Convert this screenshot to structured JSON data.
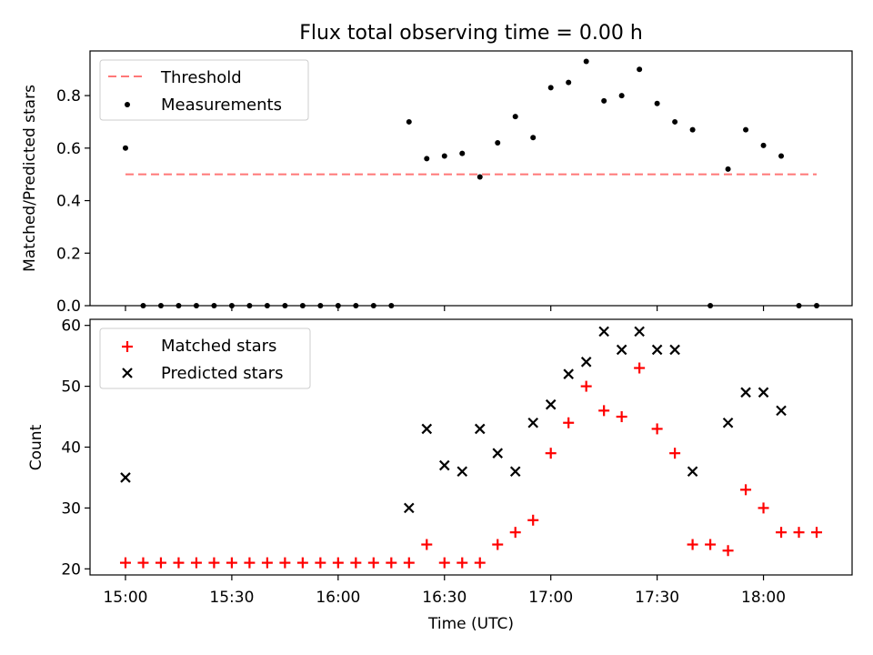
{
  "chart_data": [
    {
      "type": "scatter",
      "title": "Flux total observing time = 0.00 h",
      "xlabel": "",
      "ylabel": "Matched/Predicted stars",
      "ylim": [
        0,
        0.97
      ],
      "yticks": [
        0.0,
        0.2,
        0.4,
        0.6,
        0.8
      ],
      "ytick_labels": [
        "0.0",
        "0.2",
        "0.4",
        "0.6",
        "0.8"
      ],
      "xticks": [
        0,
        30,
        60,
        90,
        120,
        150,
        180
      ],
      "xlim": [
        -10,
        205
      ],
      "x_unit": "minutes after 15:00 UTC",
      "legend": "upper-left",
      "threshold": {
        "name": "Threshold",
        "color": "#ff7777",
        "x": [
          0,
          195
        ],
        "y": 0.5
      },
      "series": [
        {
          "name": "Measurements",
          "color": "#000000",
          "x": [
            0,
            5,
            10,
            15,
            20,
            25,
            30,
            35,
            40,
            45,
            50,
            55,
            60,
            65,
            70,
            75,
            80,
            85,
            90,
            95,
            100,
            105,
            110,
            115,
            120,
            125,
            130,
            135,
            140,
            145,
            150,
            155,
            160,
            165,
            170,
            175,
            180,
            185,
            190,
            195
          ],
          "y": [
            0.6,
            0,
            0,
            0,
            0,
            0,
            0,
            0,
            0,
            0,
            0,
            0,
            0,
            0,
            0,
            0,
            0.7,
            0.56,
            0.57,
            0.58,
            0.49,
            0.62,
            0.72,
            0.64,
            0.83,
            0.85,
            0.93,
            0.78,
            0.8,
            0.9,
            0.77,
            0.7,
            0.67,
            0,
            0.52,
            0.67,
            0.61,
            0.57,
            0,
            0
          ]
        }
      ]
    },
    {
      "type": "scatter",
      "title": "",
      "xlabel": "Time (UTC)",
      "ylabel": "Count",
      "ylim": [
        19,
        61
      ],
      "yticks": [
        20,
        30,
        40,
        50,
        60
      ],
      "ytick_labels": [
        "20",
        "30",
        "40",
        "50",
        "60"
      ],
      "xticks": [
        0,
        30,
        60,
        90,
        120,
        150,
        180
      ],
      "xtick_labels": [
        "15:00",
        "15:30",
        "16:00",
        "16:30",
        "17:00",
        "17:30",
        "18:00"
      ],
      "xlim": [
        -10,
        205
      ],
      "x_unit": "minutes after 15:00 UTC",
      "legend": "upper-left",
      "series": [
        {
          "name": "Matched stars",
          "marker": "plus",
          "color": "#ff0000",
          "x": [
            0,
            5,
            10,
            15,
            20,
            25,
            30,
            35,
            40,
            45,
            50,
            55,
            60,
            65,
            70,
            75,
            80,
            85,
            90,
            95,
            100,
            105,
            110,
            115,
            120,
            125,
            130,
            135,
            140,
            145,
            150,
            155,
            160,
            165,
            170,
            175,
            180,
            185,
            190,
            195
          ],
          "y": [
            21,
            21,
            21,
            21,
            21,
            21,
            21,
            21,
            21,
            21,
            21,
            21,
            21,
            21,
            21,
            21,
            21,
            24,
            21,
            21,
            21,
            24,
            26,
            28,
            39,
            44,
            50,
            46,
            45,
            53,
            43,
            39,
            24,
            24,
            23,
            33,
            30,
            26,
            26,
            26
          ]
        },
        {
          "name": "Predicted stars",
          "marker": "x",
          "color": "#000000",
          "x": [
            0,
            80,
            85,
            90,
            95,
            100,
            105,
            110,
            115,
            120,
            125,
            130,
            135,
            140,
            145,
            150,
            155,
            160,
            170,
            175,
            180,
            185
          ],
          "y": [
            35,
            30,
            43,
            37,
            36,
            43,
            39,
            36,
            44,
            47,
            52,
            54,
            59,
            56,
            59,
            56,
            56,
            36,
            44,
            49,
            49,
            46
          ]
        }
      ]
    }
  ]
}
